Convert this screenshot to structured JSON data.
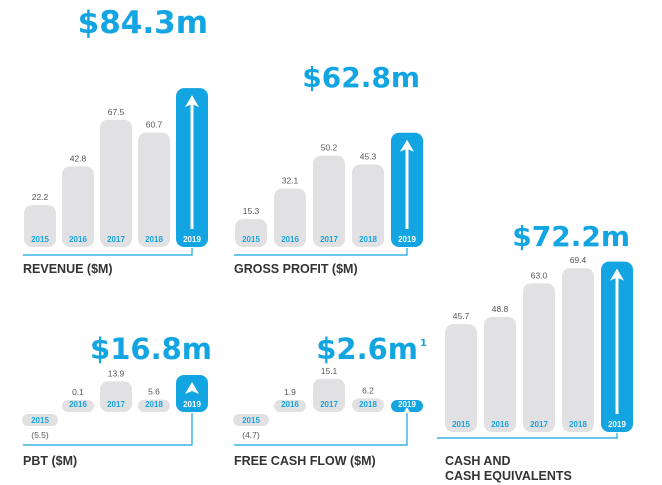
{
  "colors": {
    "bar": "#e1e1e3",
    "highlight": "#12a5e2",
    "year_text": "#1aa3dd",
    "label": "#333333",
    "value": "#555555"
  },
  "chart_data": [
    {
      "type": "bar",
      "title": "REVENUE ($M)",
      "headline": "$84.3m",
      "categories": [
        "2015",
        "2016",
        "2017",
        "2018",
        "2019"
      ],
      "values": [
        22.2,
        42.8,
        67.5,
        60.7,
        84.3
      ],
      "value_labels": [
        "22.2",
        "42.8",
        "67.5",
        "60.7",
        ""
      ],
      "highlight_index": 4
    },
    {
      "type": "bar",
      "title": "GROSS PROFIT ($M)",
      "headline": "$62.8m",
      "categories": [
        "2015",
        "2016",
        "2017",
        "2018",
        "2019"
      ],
      "values": [
        15.3,
        32.1,
        50.2,
        45.3,
        62.8
      ],
      "value_labels": [
        "15.3",
        "32.1",
        "50.2",
        "45.3",
        ""
      ],
      "highlight_index": 4
    },
    {
      "type": "bar",
      "title": "PBT ($M)",
      "headline": "$16.8m",
      "categories": [
        "2015",
        "2016",
        "2017",
        "2018",
        "2019"
      ],
      "values": [
        -5.5,
        0.1,
        13.9,
        5.6,
        16.8
      ],
      "value_labels": [
        "(5.5)",
        "0.1",
        "13.9",
        "5.6",
        ""
      ],
      "highlight_index": 4
    },
    {
      "type": "bar",
      "title": "FREE CASH FLOW ($M)",
      "headline": "$2.6m",
      "headline_note": "1",
      "categories": [
        "2015",
        "2016",
        "2017",
        "2018",
        "2019"
      ],
      "values": [
        -4.7,
        1.9,
        15.1,
        6.2,
        2.6
      ],
      "value_labels": [
        "(4.7)",
        "1.9",
        "15.1",
        "6.2",
        ""
      ],
      "highlight_index": 4
    },
    {
      "type": "bar",
      "title": [
        "CASH AND",
        "CASH EQUIVALENTS"
      ],
      "headline": "$72.2m",
      "categories": [
        "2015",
        "2016",
        "2017",
        "2018",
        "2019"
      ],
      "values": [
        45.7,
        48.8,
        63.0,
        69.4,
        72.2
      ],
      "value_labels": [
        "45.7",
        "48.8",
        "63.0",
        "69.4",
        ""
      ],
      "highlight_index": 4
    }
  ]
}
